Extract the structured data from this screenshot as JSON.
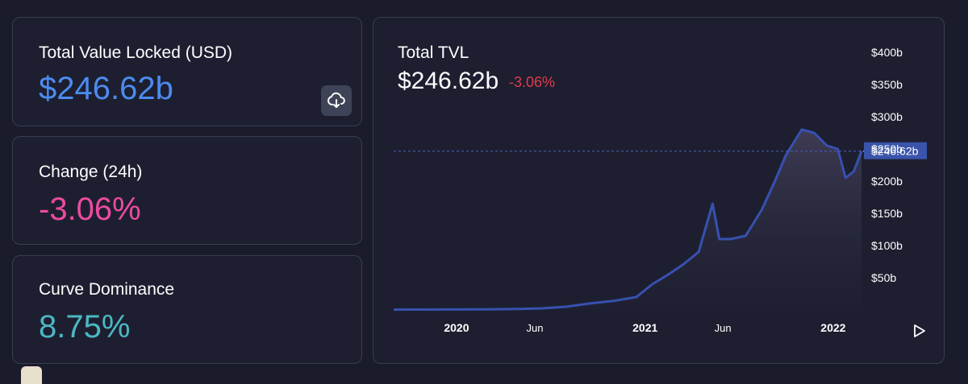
{
  "cards": {
    "tvl": {
      "label": "Total Value Locked (USD)",
      "value": "$246.62b"
    },
    "change": {
      "label": "Change (24h)",
      "value": "-3.06%"
    },
    "dominance": {
      "label": "Curve Dominance",
      "value": "8.75%"
    }
  },
  "download": {
    "icon": "cloud-download-icon"
  },
  "chart_header": {
    "title": "Total TVL",
    "value": "$246.62b",
    "change": "-3.06%"
  },
  "colors": {
    "tvl_value": "#4c8bf0",
    "change_value": "#ec4ba0",
    "dominance_value": "#4cb8c4",
    "chart_change": "#e03a4e",
    "line": "#3751b0",
    "price_tag": "#3a54ab"
  },
  "chart_data": {
    "type": "area",
    "title": "Total TVL",
    "x": [
      "2019-09-01",
      "2019-11-01",
      "2020-01-01",
      "2020-03-01",
      "2020-05-01",
      "2020-06-15",
      "2020-08-01",
      "2020-09-15",
      "2020-11-01",
      "2020-12-15",
      "2021-01-15",
      "2021-02-15",
      "2021-03-15",
      "2021-04-15",
      "2021-05-12",
      "2021-05-25",
      "2021-06-15",
      "2021-07-15",
      "2021-08-15",
      "2021-09-10",
      "2021-10-01",
      "2021-11-01",
      "2021-11-25",
      "2021-12-20",
      "2022-01-10",
      "2022-01-25",
      "2022-02-10",
      "2022-02-25"
    ],
    "y": [
      0.5,
      0.6,
      0.8,
      1,
      1.5,
      2.5,
      5,
      10,
      14,
      20,
      40,
      55,
      70,
      90,
      165,
      110,
      110,
      115,
      155,
      200,
      240,
      280,
      275,
      255,
      250,
      205,
      215,
      246.62
    ],
    "xticks": [
      "2020",
      "Jun",
      "2021",
      "Jun",
      "2022"
    ],
    "yticks": [
      "$50b",
      "$100b",
      "$150b",
      "$200b",
      "$250b",
      "$300b",
      "$350b",
      "$400b"
    ],
    "ylim": [
      0,
      400
    ],
    "current_label": "$246.62b",
    "grid": false
  }
}
